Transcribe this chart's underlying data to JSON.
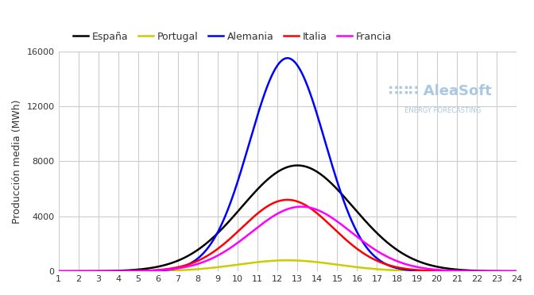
{
  "title": "",
  "ylabel": "Producción media (MWh)",
  "xlabel": "",
  "x_ticks": [
    1,
    2,
    3,
    4,
    5,
    6,
    7,
    8,
    9,
    10,
    11,
    12,
    13,
    14,
    15,
    16,
    17,
    18,
    19,
    20,
    21,
    22,
    23,
    24
  ],
  "xlim": [
    1,
    24
  ],
  "ylim": [
    0,
    16000
  ],
  "y_ticks": [
    0,
    4000,
    8000,
    12000,
    16000
  ],
  "grid_color": "#cccccc",
  "bg_color": "#ffffff",
  "legend": [
    "España",
    "Portugal",
    "Alemania",
    "Italia",
    "Francia"
  ],
  "line_colors": [
    "#000000",
    "#cccc00",
    "#0000ff",
    "#ff0000",
    "#ff00ff"
  ],
  "line_widths": [
    1.8,
    1.8,
    1.8,
    1.8,
    1.8
  ],
  "curves": {
    "España": {
      "mu": 13.0,
      "sigma": 2.8,
      "peak": 7700
    },
    "Portugal": {
      "mu": 12.5,
      "sigma": 2.5,
      "peak": 800
    },
    "Alemania": {
      "mu": 12.5,
      "sigma": 1.9,
      "peak": 15500
    },
    "Italia": {
      "mu": 12.5,
      "sigma": 2.3,
      "peak": 5200
    },
    "Francia": {
      "mu": 13.2,
      "sigma": 2.5,
      "peak": 4700
    }
  },
  "watermark_text1": "AleaSoft",
  "watermark_text2": "ENERGY FORECASTING",
  "watermark_color": "#aac8e0"
}
